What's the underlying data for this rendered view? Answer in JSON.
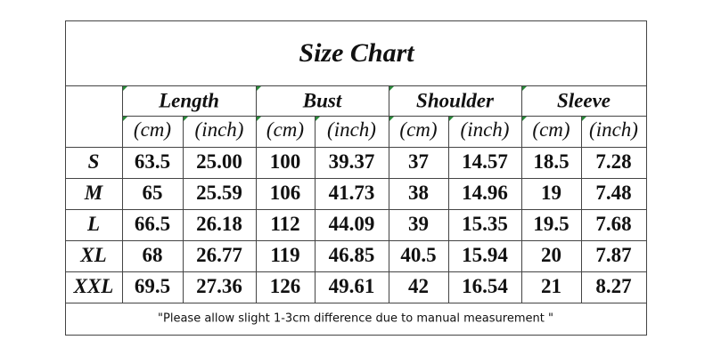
{
  "title": "Size Chart",
  "groups": [
    {
      "name": "Length",
      "units": [
        "(cm)",
        "(inch)"
      ]
    },
    {
      "name": "Bust",
      "units": [
        "(cm)",
        "(inch)"
      ]
    },
    {
      "name": "Shoulder",
      "units": [
        "(cm)",
        "(inch)"
      ]
    },
    {
      "name": "Sleeve",
      "units": [
        "(cm)",
        "(inch)"
      ]
    }
  ],
  "rows": [
    {
      "size": "S",
      "cells": [
        "63.5",
        "25.00",
        "100",
        "39.37",
        "37",
        "14.57",
        "18.5",
        "7.28"
      ]
    },
    {
      "size": "M",
      "cells": [
        "65",
        "25.59",
        "106",
        "41.73",
        "38",
        "14.96",
        "19",
        "7.48"
      ]
    },
    {
      "size": "L",
      "cells": [
        "66.5",
        "26.18",
        "112",
        "44.09",
        "39",
        "15.35",
        "19.5",
        "7.68"
      ]
    },
    {
      "size": "XL",
      "cells": [
        "68",
        "26.77",
        "119",
        "46.85",
        "40.5",
        "15.94",
        "20",
        "7.87"
      ]
    },
    {
      "size": "XXL",
      "cells": [
        "69.5",
        "27.36",
        "126",
        "49.61",
        "42",
        "16.54",
        "21",
        "8.27"
      ]
    }
  ],
  "note": "\"Please allow slight 1-3cm difference due to manual measurement \""
}
